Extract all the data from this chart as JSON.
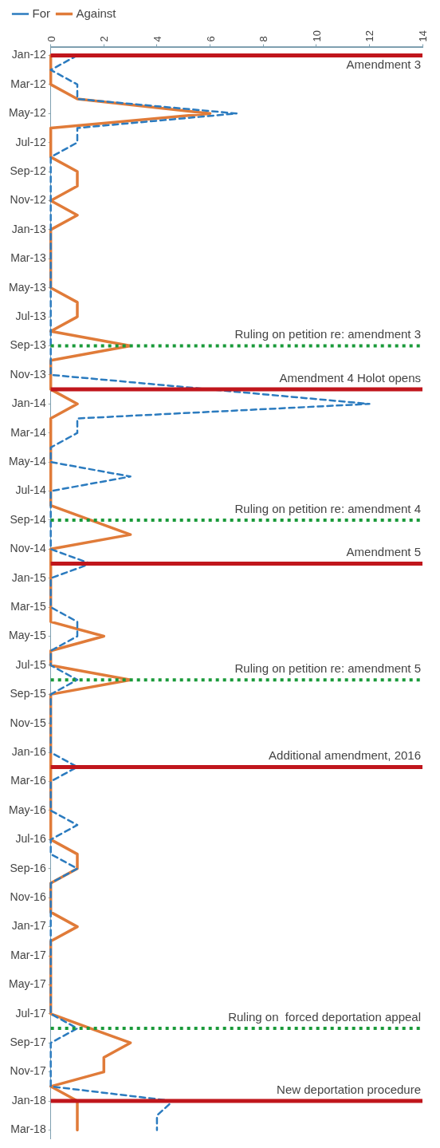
{
  "chart_data": {
    "type": "line",
    "orientation": "horizontal",
    "legend": "top left",
    "marker": "none",
    "grid": false,
    "x": [
      "2012-01",
      "2012-02",
      "2012-03",
      "2012-04",
      "2012-05",
      "2012-06",
      "2012-07",
      "2012-08",
      "2012-09",
      "2012-10",
      "2012-11",
      "2012-12",
      "2013-01",
      "2013-02",
      "2013-03",
      "2013-04",
      "2013-05",
      "2013-06",
      "2013-07",
      "2013-08",
      "2013-09",
      "2013-10",
      "2013-11",
      "2013-12",
      "2014-01",
      "2014-02",
      "2014-03",
      "2014-04",
      "2014-05",
      "2014-06",
      "2014-07",
      "2014-08",
      "2014-09",
      "2014-10",
      "2014-11",
      "2014-12",
      "2015-01",
      "2015-02",
      "2015-03",
      "2015-04",
      "2015-05",
      "2015-06",
      "2015-07",
      "2015-08",
      "2015-09",
      "2015-10",
      "2015-11",
      "2015-12",
      "2016-01",
      "2016-02",
      "2016-03",
      "2016-04",
      "2016-05",
      "2016-06",
      "2016-07",
      "2016-08",
      "2016-09",
      "2016-10",
      "2016-11",
      "2016-12",
      "2017-01",
      "2017-02",
      "2017-03",
      "2017-04",
      "2017-05",
      "2017-06",
      "2017-07",
      "2017-08",
      "2017-09",
      "2017-10",
      "2017-11",
      "2017-12",
      "2018-01",
      "2018-02",
      "2018-03"
    ],
    "series": [
      {
        "name": "For",
        "color": "#2b7bbf",
        "line_style": "dashed",
        "values": [
          1,
          0,
          1,
          1,
          7,
          1,
          1,
          0,
          0,
          0,
          0,
          0,
          0,
          0,
          0,
          0,
          0,
          0,
          0,
          0,
          0,
          0,
          0,
          null,
          12,
          1,
          1,
          0,
          0,
          3,
          0,
          0,
          0,
          0,
          0,
          1.5,
          0,
          0,
          0,
          1,
          1,
          0,
          0,
          1,
          0,
          0,
          0,
          0,
          0,
          1,
          0,
          0,
          0,
          1,
          0,
          0,
          1,
          0,
          0,
          0,
          0,
          0,
          0,
          0,
          0,
          0,
          0,
          1,
          0,
          0,
          0,
          0,
          4.6,
          4,
          4
        ]
      },
      {
        "name": "Against",
        "color": "#e07b39",
        "line_style": "solid",
        "values": [
          0,
          0,
          0,
          1,
          6,
          0,
          0,
          0,
          1,
          1,
          0,
          1,
          0,
          0,
          0,
          0,
          0,
          1,
          1,
          0,
          3,
          0,
          0,
          0,
          1,
          0,
          0,
          0,
          0,
          0,
          0,
          0,
          1.5,
          3,
          0,
          0,
          0,
          0,
          0,
          0,
          2,
          0,
          0,
          3,
          0,
          0,
          0,
          0,
          0,
          0,
          0,
          0,
          0,
          0,
          0,
          1,
          1,
          0,
          0,
          0,
          1,
          0,
          0,
          0,
          0,
          0,
          0,
          1.5,
          3,
          2,
          2,
          0,
          1,
          1,
          1
        ]
      }
    ],
    "xlim": [
      0,
      14
    ],
    "xticks": [
      0,
      2,
      4,
      6,
      8,
      10,
      12,
      14
    ],
    "ylim": [
      "2018-03-20",
      "2011-12-15"
    ],
    "yticks": [
      {
        "value": "2012-01",
        "label": "Jan-12"
      },
      {
        "value": "2012-03",
        "label": "Mar-12"
      },
      {
        "value": "2012-05",
        "label": "May-12"
      },
      {
        "value": "2012-07",
        "label": "Jul-12"
      },
      {
        "value": "2012-09",
        "label": "Sep-12"
      },
      {
        "value": "2012-11",
        "label": "Nov-12"
      },
      {
        "value": "2013-01",
        "label": "Jan-13"
      },
      {
        "value": "2013-03",
        "label": "Mar-13"
      },
      {
        "value": "2013-05",
        "label": "May-13"
      },
      {
        "value": "2013-07",
        "label": "Jul-13"
      },
      {
        "value": "2013-09",
        "label": "Sep-13"
      },
      {
        "value": "2013-11",
        "label": "Nov-13"
      },
      {
        "value": "2014-01",
        "label": "Jan-14"
      },
      {
        "value": "2014-03",
        "label": "Mar-14"
      },
      {
        "value": "2014-05",
        "label": "May-14"
      },
      {
        "value": "2014-07",
        "label": "Jul-14"
      },
      {
        "value": "2014-09",
        "label": "Sep-14"
      },
      {
        "value": "2014-11",
        "label": "Nov-14"
      },
      {
        "value": "2015-01",
        "label": "Jan-15"
      },
      {
        "value": "2015-03",
        "label": "Mar-15"
      },
      {
        "value": "2015-05",
        "label": "May-15"
      },
      {
        "value": "2015-07",
        "label": "Jul-15"
      },
      {
        "value": "2015-09",
        "label": "Sep-15"
      },
      {
        "value": "2015-11",
        "label": "Nov-15"
      },
      {
        "value": "2016-01",
        "label": "Jan-16"
      },
      {
        "value": "2016-03",
        "label": "Mar-16"
      },
      {
        "value": "2016-05",
        "label": "May-16"
      },
      {
        "value": "2016-07",
        "label": "Jul-16"
      },
      {
        "value": "2016-09",
        "label": "Sep-16"
      },
      {
        "value": "2016-11",
        "label": "Nov-16"
      },
      {
        "value": "2017-01",
        "label": "Jan-17"
      },
      {
        "value": "2017-03",
        "label": "Mar-17"
      },
      {
        "value": "2017-05",
        "label": "May-17"
      },
      {
        "value": "2017-07",
        "label": "Jul-17"
      },
      {
        "value": "2017-09",
        "label": "Sep-17"
      },
      {
        "value": "2017-11",
        "label": "Nov-17"
      },
      {
        "value": "2018-01",
        "label": "Jan-18"
      },
      {
        "value": "2018-03",
        "label": "Mar-18"
      }
    ],
    "ref_lines": [
      {
        "axis": "y",
        "value": "2012-01",
        "label": "Amendment 3",
        "color": "#c0161c",
        "line_style": "solid"
      },
      {
        "axis": "y",
        "value": "2013-09",
        "label": "Ruling on petition re: amendment 3",
        "color": "#1a9a3a",
        "line_style": "dotted"
      },
      {
        "axis": "y",
        "value": "2013-12",
        "label": "Amendment 4 Holot opens",
        "color": "#c0161c",
        "line_style": "solid"
      },
      {
        "axis": "y",
        "value": "2014-09",
        "label": "Ruling on petition re: amendment 4",
        "color": "#1a9a3a",
        "line_style": "dotted"
      },
      {
        "axis": "y",
        "value": "2014-12",
        "label": "Amendment 5",
        "color": "#c0161c",
        "line_style": "solid"
      },
      {
        "axis": "y",
        "value": "2015-08",
        "label": "Ruling on petition re: amendment 5",
        "color": "#1a9a3a",
        "line_style": "dotted"
      },
      {
        "axis": "y",
        "value": "2016-02",
        "label": "Additional amendment, 2016",
        "color": "#c0161c",
        "line_style": "solid"
      },
      {
        "axis": "y",
        "value": "2017-08",
        "label": "Ruling on  forced deportation appeal",
        "color": "#1a9a3a",
        "line_style": "dotted"
      },
      {
        "axis": "y",
        "value": "2018-01",
        "label": "New deportation procedure",
        "color": "#c0161c",
        "line_style": "solid"
      }
    ]
  }
}
